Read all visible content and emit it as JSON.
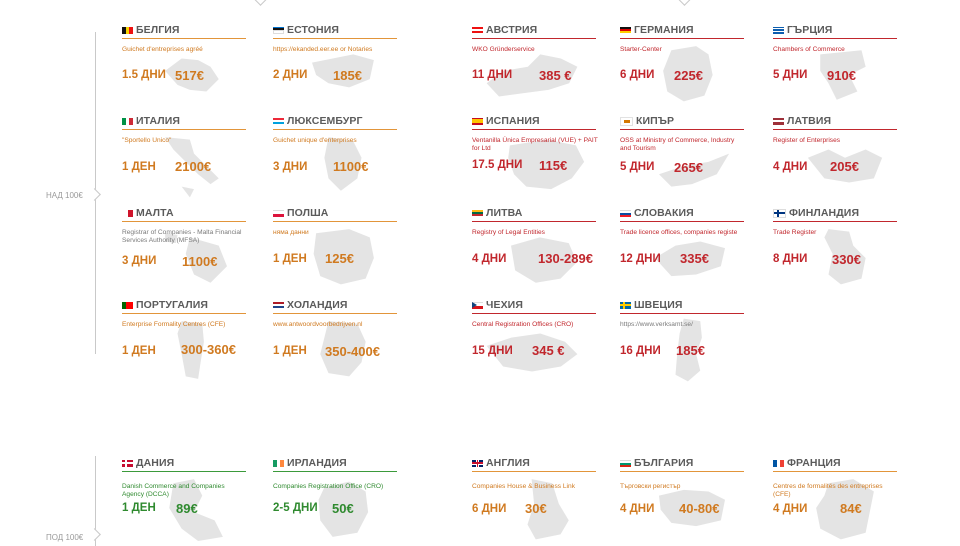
{
  "groups": {
    "over": "НАД 100€",
    "under": "ПОД 100€"
  },
  "cards": [
    {
      "key": "belgium",
      "name": "БЕЛГИЯ",
      "org": "Guichet d'entreprises agréé",
      "days": "1.5 ДНИ",
      "cost": "517€"
    },
    {
      "key": "estonia",
      "name": "ЕСТОНИЯ",
      "org": "https://ekanded.eer.ee or Notaries",
      "days": "2 ДНИ",
      "cost": "185€"
    },
    {
      "key": "austria",
      "name": "АВСТРИЯ",
      "org": "WKO Gründerservice",
      "days": "11 ДНИ",
      "cost": "385 €"
    },
    {
      "key": "germany",
      "name": "ГЕРМАНИЯ",
      "org": "Starter-Center",
      "days": "6 ДНИ",
      "cost": "225€"
    },
    {
      "key": "greece",
      "name": "ГЪРЦИЯ",
      "org": "Chambers of Commerce",
      "days": "5 ДНИ",
      "cost": "910€"
    },
    {
      "key": "italy",
      "name": "ИТАЛИЯ",
      "org": "\"Sportello Unico\"",
      "days": "1 ДЕН",
      "cost": "2100€"
    },
    {
      "key": "luxembourg",
      "name": "ЛЮКСЕМБУРГ",
      "org": "Guichet unique d'enterprises",
      "days": "3 ДНИ",
      "cost": "1100€"
    },
    {
      "key": "spain",
      "name": "ИСПАНИЯ",
      "org": "Ventanilla Única Empresarial (VUE) + PAIT for Ltd",
      "days": "17.5 ДНИ",
      "cost": "115€"
    },
    {
      "key": "cyprus",
      "name": "КИПЪР",
      "org": "OSS at Ministry of Commerce, Industry and Tourism",
      "days": "5 ДНИ",
      "cost": "265€"
    },
    {
      "key": "latvia",
      "name": "ЛАТВИЯ",
      "org": "Register of Enterprises",
      "days": "4 ДНИ",
      "cost": "205€"
    },
    {
      "key": "malta",
      "name": "МАЛТА",
      "org": "Registrar of Companies - Malta Financial Services Authority (MFSA)",
      "days": "3 ДНИ",
      "cost": "1100€"
    },
    {
      "key": "poland",
      "name": "ПОЛША",
      "org": "няма данни",
      "days": "1 ДЕН",
      "cost": "125€"
    },
    {
      "key": "lithuania",
      "name": "ЛИТВА",
      "org": "Registry of Legal Entities",
      "days": "4 ДНИ",
      "cost": "130-289€"
    },
    {
      "key": "slovakia",
      "name": "СЛОВАКИЯ",
      "org": "Trade licence offices, companies registe",
      "days": "12 ДНИ",
      "cost": "335€"
    },
    {
      "key": "finland",
      "name": "ФИНЛАНДИЯ",
      "org": "Trade Register",
      "days": "8 ДНИ",
      "cost": "330€"
    },
    {
      "key": "portugal",
      "name": "ПОРТУГАЛИЯ",
      "org": "Enterprise Formality Centres (CFE)",
      "days": "1 ДЕН",
      "cost": "300-360€"
    },
    {
      "key": "netherlands",
      "name": "ХОЛАНДИЯ",
      "org": "www.antwoordvoorbedrijven.nl",
      "days": "1 ДЕН",
      "cost": "350-400€"
    },
    {
      "key": "czechia",
      "name": "ЧЕХИЯ",
      "org": "Central Registration Offices (CRO)",
      "days": "15 ДНИ",
      "cost": "345 €"
    },
    {
      "key": "sweden",
      "name": "ШВЕЦИЯ",
      "org": "https://www.verksamt.se/",
      "days": "16 ДНИ",
      "cost": "185€"
    },
    {
      "key": "denmark",
      "name": "ДАНИЯ",
      "org": "Danish Commerce and Companies Agency (DCCA)",
      "days": "1 ДЕН",
      "cost": "89€"
    },
    {
      "key": "ireland",
      "name": "ИРЛАНДИЯ",
      "org": "Companies Registration Office (CRO)",
      "days": "2-5 ДНИ",
      "cost": "50€"
    },
    {
      "key": "england",
      "name": "АНГЛИЯ",
      "org": "Companies House & Business Link",
      "days": "6 ДНИ",
      "cost": "30€"
    },
    {
      "key": "bulgaria",
      "name": "БЪЛГАРИЯ",
      "org": "Търговски регистър",
      "days": "4 ДНИ",
      "cost": "40-80€"
    },
    {
      "key": "france",
      "name": "ФРАНЦИЯ",
      "org": "Centres de formalités des entreprises (CFE)",
      "days": "4 ДНИ",
      "cost": "84€"
    }
  ],
  "colors": {
    "red": "#c1272d",
    "orange": "#d07a20",
    "green": "#2f8a2f",
    "map": "#e4e4e4"
  }
}
